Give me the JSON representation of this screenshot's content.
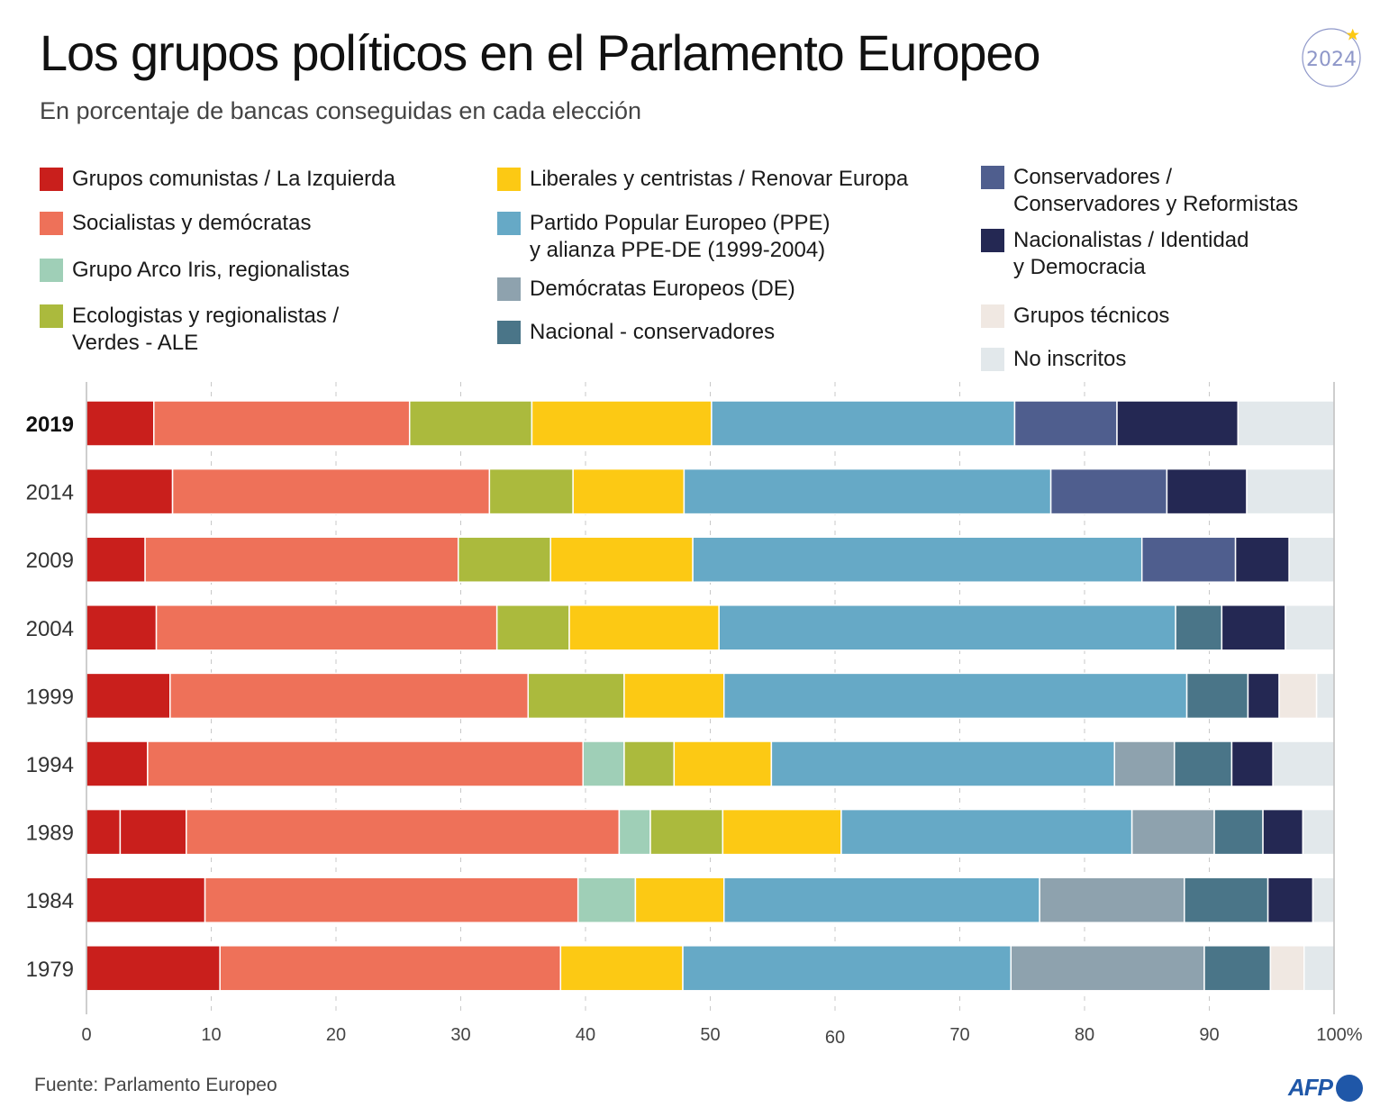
{
  "header": {
    "title": "Los grupos políticos en el Parlamento Europeo",
    "subtitle": "En porcentaje de bancas conseguidas en cada elección",
    "badge_year": "2024"
  },
  "footer": {
    "source": "Fuente: Parlamento Europeo",
    "logo": "AFP"
  },
  "legend": [
    {
      "key": "izquierda",
      "label": "Grupos comunistas / La Izquierda",
      "color": "#c91f1c"
    },
    {
      "key": "socialistas",
      "label": "Socialistas y demócratas",
      "color": "#ee7159"
    },
    {
      "key": "arcoiris",
      "label": "Grupo Arco Iris, regionalistas",
      "color": "#9fcfb7"
    },
    {
      "key": "verdes",
      "label": "Ecologistas y regionalistas /\nVerdes - ALE",
      "color": "#abba3d"
    },
    {
      "key": "liberales",
      "label": "Liberales y centristas / Renovar Europa",
      "color": "#fcc914"
    },
    {
      "key": "ppe",
      "label": "Partido Popular Europeo (PPE)\ny alianza PPE-DE (1999-2004)",
      "color": "#66a9c6"
    },
    {
      "key": "de",
      "label": "Demócratas Europeos (DE)",
      "color": "#8ea2ae"
    },
    {
      "key": "nacional_cons",
      "label": "Nacional - conservadores",
      "color": "#4a7588"
    },
    {
      "key": "conservadores",
      "label": "Conservadores /\nConservadores y Reformistas",
      "color": "#4f5e8e"
    },
    {
      "key": "nacionalistas",
      "label": "Nacionalistas / Identidad\ny Democracia",
      "color": "#242853"
    },
    {
      "key": "tecnicos",
      "label": "Grupos técnicos",
      "color": "#f0e8e2"
    },
    {
      "key": "no_inscritos",
      "label": "No inscritos",
      "color": "#e2e8eb"
    }
  ],
  "chart_data": {
    "type": "bar",
    "orientation": "horizontal",
    "stacked": true,
    "title": "Los grupos políticos en el Parlamento Europeo",
    "subtitle": "En porcentaje de bancas conseguidas en cada elección",
    "xlabel": "",
    "ylabel": "",
    "xlim": [
      0,
      100
    ],
    "x_ticks": [
      "0",
      "10",
      "20",
      "30",
      "40",
      "50",
      "60",
      "70",
      "80",
      "90",
      "100%"
    ],
    "grid": "vertical dashed",
    "legend_position": "top",
    "categories": [
      "2019",
      "2014",
      "2009",
      "2004",
      "1999",
      "1994",
      "1989",
      "1984",
      "1979"
    ],
    "highlighted_category": "2019",
    "rows": [
      {
        "year": "2019",
        "segments": [
          {
            "group": "izquierda",
            "value": 5.4
          },
          {
            "group": "socialistas",
            "value": 20.5
          },
          {
            "group": "verdes",
            "value": 9.8
          },
          {
            "group": "liberales",
            "value": 14.4
          },
          {
            "group": "ppe",
            "value": 24.3
          },
          {
            "group": "conservadores",
            "value": 8.2
          },
          {
            "group": "nacionalistas",
            "value": 9.7
          },
          {
            "group": "no_inscritos",
            "value": 7.7
          }
        ]
      },
      {
        "year": "2014",
        "segments": [
          {
            "group": "izquierda",
            "value": 6.9
          },
          {
            "group": "socialistas",
            "value": 25.4
          },
          {
            "group": "verdes",
            "value": 6.7
          },
          {
            "group": "liberales",
            "value": 8.9
          },
          {
            "group": "ppe",
            "value": 29.4
          },
          {
            "group": "conservadores",
            "value": 9.3
          },
          {
            "group": "nacionalistas",
            "value": 6.4
          },
          {
            "group": "no_inscritos",
            "value": 7.0
          }
        ]
      },
      {
        "year": "2009",
        "segments": [
          {
            "group": "izquierda",
            "value": 4.7
          },
          {
            "group": "socialistas",
            "value": 25.1
          },
          {
            "group": "verdes",
            "value": 7.4
          },
          {
            "group": "liberales",
            "value": 11.4
          },
          {
            "group": "ppe",
            "value": 36.0
          },
          {
            "group": "conservadores",
            "value": 7.5
          },
          {
            "group": "nacionalistas",
            "value": 4.3
          },
          {
            "group": "no_inscritos",
            "value": 3.6
          }
        ]
      },
      {
        "year": "2004",
        "segments": [
          {
            "group": "izquierda",
            "value": 5.6
          },
          {
            "group": "socialistas",
            "value": 27.3
          },
          {
            "group": "verdes",
            "value": 5.8
          },
          {
            "group": "liberales",
            "value": 12.0
          },
          {
            "group": "ppe",
            "value": 36.6
          },
          {
            "group": "nacional_cons",
            "value": 3.7
          },
          {
            "group": "nacionalistas",
            "value": 5.1
          },
          {
            "group": "no_inscritos",
            "value": 3.9
          }
        ]
      },
      {
        "year": "1999",
        "segments": [
          {
            "group": "izquierda",
            "value": 6.7
          },
          {
            "group": "socialistas",
            "value": 28.7
          },
          {
            "group": "verdes",
            "value": 7.7
          },
          {
            "group": "liberales",
            "value": 8.0
          },
          {
            "group": "ppe",
            "value": 37.1
          },
          {
            "group": "nacional_cons",
            "value": 4.9
          },
          {
            "group": "nacionalistas",
            "value": 2.5
          },
          {
            "group": "tecnicos",
            "value": 3.0
          },
          {
            "group": "no_inscritos",
            "value": 1.4
          }
        ]
      },
      {
        "year": "1994",
        "segments": [
          {
            "group": "izquierda",
            "value": 4.9
          },
          {
            "group": "socialistas",
            "value": 34.9
          },
          {
            "group": "arcoiris",
            "value": 3.3
          },
          {
            "group": "verdes",
            "value": 4.0
          },
          {
            "group": "liberales",
            "value": 7.8
          },
          {
            "group": "ppe",
            "value": 27.5
          },
          {
            "group": "de",
            "value": 4.8
          },
          {
            "group": "nacional_cons",
            "value": 4.6
          },
          {
            "group": "nacionalistas",
            "value": 3.3
          },
          {
            "group": "no_inscritos",
            "value": 4.9
          }
        ]
      },
      {
        "year": "1989",
        "segments": [
          {
            "group": "izquierda",
            "value": 2.7
          },
          {
            "group": "izquierda",
            "value": 5.3
          },
          {
            "group": "socialistas",
            "value": 34.7
          },
          {
            "group": "arcoiris",
            "value": 2.5
          },
          {
            "group": "verdes",
            "value": 5.8
          },
          {
            "group": "liberales",
            "value": 9.5
          },
          {
            "group": "ppe",
            "value": 23.3
          },
          {
            "group": "de",
            "value": 6.6
          },
          {
            "group": "nacional_cons",
            "value": 3.9
          },
          {
            "group": "nacionalistas",
            "value": 3.2
          },
          {
            "group": "no_inscritos",
            "value": 2.5
          }
        ]
      },
      {
        "year": "1984",
        "segments": [
          {
            "group": "izquierda",
            "value": 9.5
          },
          {
            "group": "socialistas",
            "value": 29.9
          },
          {
            "group": "arcoiris",
            "value": 4.6
          },
          {
            "group": "liberales",
            "value": 7.1
          },
          {
            "group": "ppe",
            "value": 25.3
          },
          {
            "group": "de",
            "value": 11.6
          },
          {
            "group": "nacional_cons",
            "value": 6.7
          },
          {
            "group": "nacionalistas",
            "value": 3.6
          },
          {
            "group": "no_inscritos",
            "value": 1.7
          }
        ]
      },
      {
        "year": "1979",
        "segments": [
          {
            "group": "izquierda",
            "value": 10.7
          },
          {
            "group": "socialistas",
            "value": 27.3
          },
          {
            "group": "liberales",
            "value": 9.8
          },
          {
            "group": "ppe",
            "value": 26.3
          },
          {
            "group": "de",
            "value": 15.5
          },
          {
            "group": "nacional_cons",
            "value": 5.3
          },
          {
            "group": "tecnicos",
            "value": 2.7
          },
          {
            "group": "no_inscritos",
            "value": 2.4
          }
        ]
      }
    ]
  }
}
